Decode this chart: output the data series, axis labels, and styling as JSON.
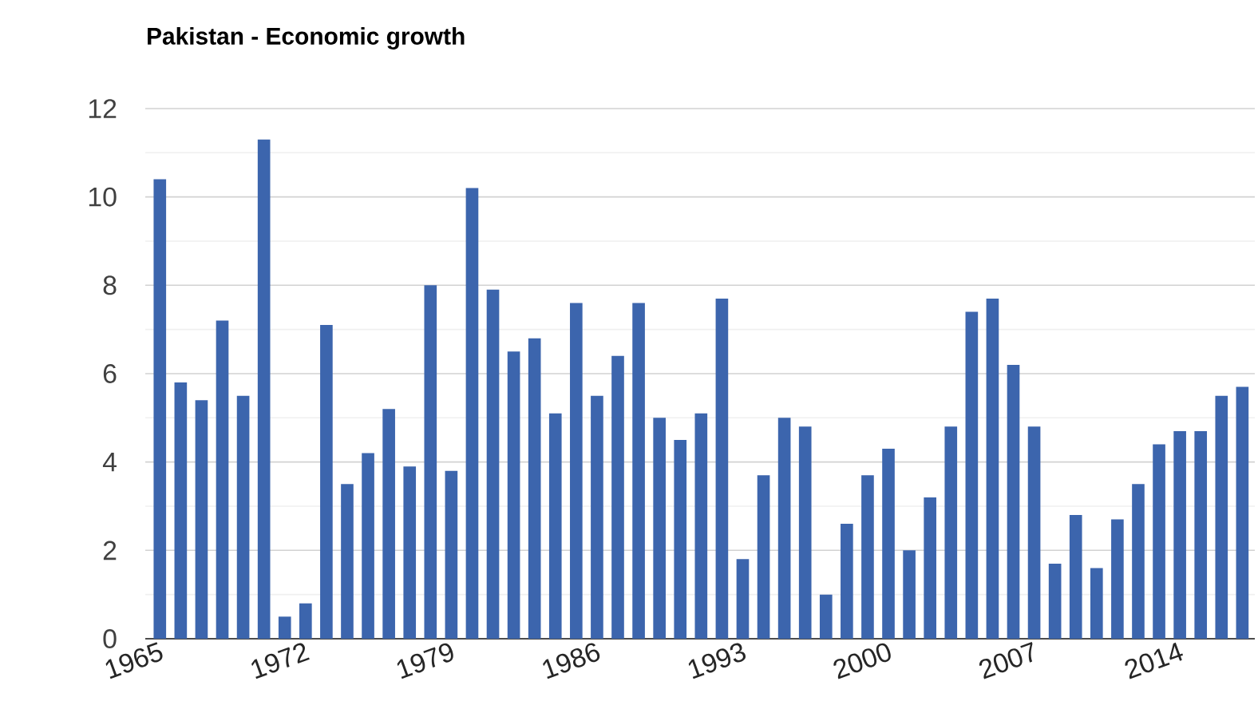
{
  "chart_data": {
    "type": "bar",
    "title": "Pakistan - Economic growth",
    "categories": [
      "1965",
      null,
      null,
      null,
      null,
      null,
      null,
      "1972",
      null,
      null,
      null,
      null,
      null,
      null,
      "1979",
      null,
      null,
      null,
      null,
      null,
      null,
      "1986",
      null,
      null,
      null,
      null,
      null,
      null,
      "1993",
      null,
      null,
      null,
      null,
      null,
      null,
      "2000",
      null,
      null,
      null,
      null,
      null,
      null,
      "2007",
      null,
      null,
      null,
      null,
      null,
      null,
      "2014",
      null,
      null,
      null
    ],
    "values": [
      10.4,
      5.8,
      5.4,
      7.2,
      5.5,
      11.3,
      0.5,
      0.8,
      7.1,
      3.5,
      4.2,
      5.2,
      3.9,
      8.0,
      3.8,
      10.2,
      7.9,
      6.5,
      6.8,
      5.1,
      7.6,
      5.5,
      6.4,
      7.6,
      5.0,
      4.5,
      5.1,
      7.7,
      1.8,
      3.7,
      5.0,
      4.8,
      1.0,
      2.6,
      3.7,
      4.3,
      2.0,
      3.2,
      4.8,
      7.4,
      7.7,
      6.2,
      4.8,
      1.7,
      2.8,
      1.6,
      2.7,
      3.5,
      4.4,
      4.7,
      4.7,
      5.5,
      5.7
    ],
    "color": "#3c65ad",
    "ylim": [
      0,
      12
    ],
    "yticks": [
      0,
      {
        "value": 1,
        "label": null
      },
      2,
      {
        "value": 3,
        "label": null
      },
      4,
      {
        "value": 5,
        "label": null
      },
      6,
      {
        "value": 7,
        "label": null
      },
      8,
      {
        "value": 9,
        "label": null
      },
      10,
      {
        "value": 11,
        "label": null
      },
      12
    ],
    "grid": "y"
  }
}
